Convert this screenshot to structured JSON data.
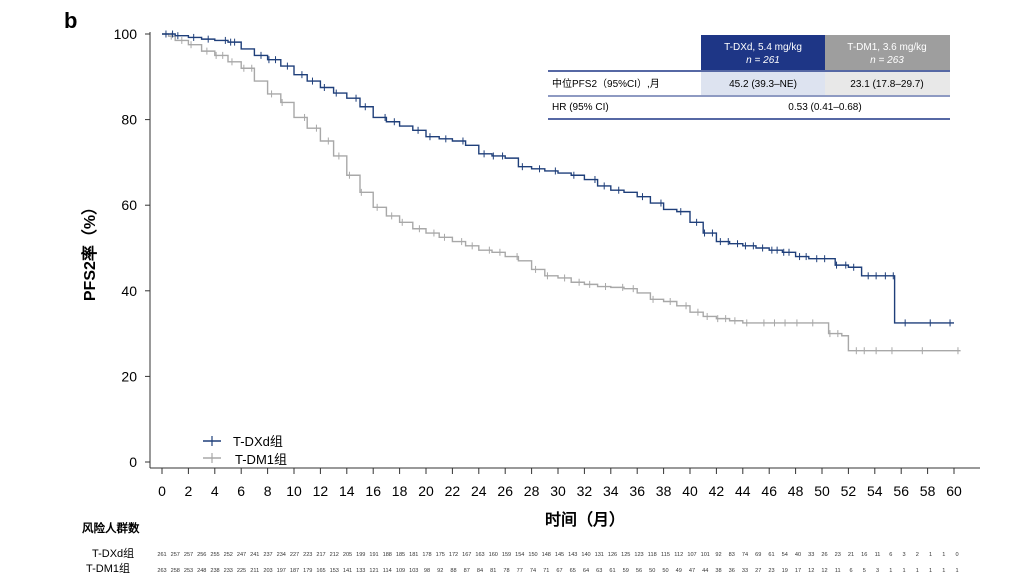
{
  "chart_data": {
    "type": "line",
    "panel_label": "b",
    "xlabel": "时间（月）",
    "ylabel": "PFS2率（%）",
    "xlim": [
      0,
      62
    ],
    "ylim": [
      0,
      100
    ],
    "xticks": [
      "0",
      "2",
      "4",
      "6",
      "8",
      "10",
      "12",
      "14",
      "16",
      "18",
      "20",
      "22",
      "24",
      "26",
      "28",
      "30",
      "32",
      "34",
      "36",
      "38",
      "40",
      "42",
      "44",
      "46",
      "48",
      "50",
      "52",
      "54",
      "56",
      "58",
      "60"
    ],
    "yticks": [
      "0",
      "20",
      "40",
      "60",
      "80",
      "100"
    ],
    "grid": false,
    "legend_position": "bottom-left",
    "colors": {
      "tdxd": "#1f3f7a",
      "tdm1": "#a8a8a8",
      "tdxd_header": "#1e3686",
      "tdm1_header": "#9e9e9e",
      "median_tdxd_bg": "#dde3f0",
      "median_tdm1_bg": "#e8e8e8"
    },
    "series": [
      {
        "name": "T-DXd组",
        "key": "tdxd",
        "points": [
          [
            0,
            100
          ],
          [
            1,
            99.6
          ],
          [
            2,
            99.2
          ],
          [
            3,
            98.8
          ],
          [
            4,
            98.5
          ],
          [
            5,
            98.1
          ],
          [
            6,
            96.5
          ],
          [
            7,
            95
          ],
          [
            8,
            94
          ],
          [
            9,
            92.5
          ],
          [
            10,
            90.5
          ],
          [
            11,
            89
          ],
          [
            12,
            87.5
          ],
          [
            13,
            86.2
          ],
          [
            14,
            85
          ],
          [
            15,
            83
          ],
          [
            16,
            80.5
          ],
          [
            17,
            79.5
          ],
          [
            18,
            78.5
          ],
          [
            19,
            77.5
          ],
          [
            20,
            76
          ],
          [
            21,
            75.5
          ],
          [
            22,
            75
          ],
          [
            23,
            74
          ],
          [
            24,
            72
          ],
          [
            25,
            71.5
          ],
          [
            26,
            71
          ],
          [
            27,
            69
          ],
          [
            28,
            68.5
          ],
          [
            29,
            68
          ],
          [
            30,
            67.5
          ],
          [
            31,
            67
          ],
          [
            32,
            66
          ],
          [
            33,
            64.5
          ],
          [
            34,
            63.5
          ],
          [
            35,
            63
          ],
          [
            36,
            62
          ],
          [
            37,
            60.5
          ],
          [
            38,
            59
          ],
          [
            39,
            58.5
          ],
          [
            40,
            56
          ],
          [
            41,
            53.5
          ],
          [
            42,
            51.5
          ],
          [
            43,
            51
          ],
          [
            44,
            50.5
          ],
          [
            45,
            50
          ],
          [
            46,
            49.5
          ],
          [
            47,
            49
          ],
          [
            48,
            48
          ],
          [
            49,
            47.5
          ],
          [
            50,
            47.5
          ],
          [
            51,
            46
          ],
          [
            52,
            45.5
          ],
          [
            53,
            43.5
          ],
          [
            55,
            43.5
          ],
          [
            55.5,
            43.5
          ],
          [
            55.5,
            32.5
          ],
          [
            60,
            32.5
          ]
        ],
        "censor_x": [
          0.3,
          0.8,
          1.2,
          2.4,
          3.5,
          4.8,
          5.2,
          5.5,
          7.5,
          8.1,
          8.6,
          9.5,
          10.6,
          11.4,
          12.3,
          13.2,
          14.7,
          15.4,
          16.9,
          17.6,
          19.4,
          20.3,
          21.5,
          22.8,
          24.4,
          25.1,
          25.8,
          27.3,
          28.6,
          29.8,
          31.2,
          32.8,
          33.5,
          34.6,
          36.4,
          37.8,
          39.3,
          40.5,
          41.1,
          41.7,
          42.3,
          42.9,
          43.6,
          44.2,
          44.8,
          45.5,
          46.2,
          46.6,
          47.1,
          47.5,
          48.3,
          48.8,
          49.6,
          50.2,
          51.1,
          51.8,
          52.4,
          53.5,
          54.1,
          54.8,
          55.4,
          56.3,
          58.2,
          59.7
        ]
      },
      {
        "name": "T-DM1组",
        "key": "tdm1",
        "points": [
          [
            0,
            100
          ],
          [
            0.5,
            99.5
          ],
          [
            1,
            98.5
          ],
          [
            2,
            97.5
          ],
          [
            3,
            96
          ],
          [
            4,
            95
          ],
          [
            5,
            93.5
          ],
          [
            6,
            92
          ],
          [
            7,
            89
          ],
          [
            8,
            86
          ],
          [
            9,
            84
          ],
          [
            10,
            80.5
          ],
          [
            11,
            78
          ],
          [
            12,
            75
          ],
          [
            13,
            71.5
          ],
          [
            14,
            67
          ],
          [
            15,
            63
          ],
          [
            16,
            59.5
          ],
          [
            17,
            57.5
          ],
          [
            18,
            56
          ],
          [
            19,
            54.5
          ],
          [
            20,
            53.5
          ],
          [
            21,
            52.5
          ],
          [
            22,
            51.5
          ],
          [
            23,
            50.5
          ],
          [
            24,
            49.5
          ],
          [
            25,
            49
          ],
          [
            26,
            48
          ],
          [
            27,
            47
          ],
          [
            28,
            45
          ],
          [
            29,
            43.5
          ],
          [
            30,
            43
          ],
          [
            31,
            42
          ],
          [
            32,
            41.5
          ],
          [
            33,
            41
          ],
          [
            34,
            40.8
          ],
          [
            35,
            40.5
          ],
          [
            36,
            39.5
          ],
          [
            37,
            38
          ],
          [
            38,
            37.5
          ],
          [
            39,
            36.5
          ],
          [
            40,
            35
          ],
          [
            41,
            34
          ],
          [
            42,
            33.5
          ],
          [
            43,
            33
          ],
          [
            44,
            32.5
          ],
          [
            50,
            32.5
          ],
          [
            50.5,
            30
          ],
          [
            51.5,
            29.5
          ],
          [
            52,
            26
          ],
          [
            60.5,
            26
          ]
        ],
        "censor_x": [
          0.7,
          1.5,
          2.2,
          3.4,
          4.1,
          4.6,
          5.3,
          6.2,
          6.8,
          8.3,
          9.1,
          10.8,
          11.7,
          12.6,
          13.4,
          14.2,
          15.1,
          16.3,
          17.4,
          18.2,
          19.5,
          20.6,
          21.4,
          22.7,
          23.5,
          24.8,
          25.6,
          26.9,
          28.3,
          29.2,
          30.5,
          31.6,
          32.4,
          33.6,
          34.9,
          35.7,
          37.2,
          38.5,
          39.7,
          40.6,
          41.3,
          42.1,
          42.7,
          43.4,
          44.3,
          45.6,
          46.4,
          47.2,
          48.1,
          49.3,
          50.6,
          51.2,
          52.6,
          53.2,
          54.1,
          55.3,
          57.6,
          60.3
        ]
      }
    ],
    "summary_table": {
      "col_headers": [
        {
          "line1": "T-DXd, 5.4 mg/kg",
          "line2": "n = 261"
        },
        {
          "line1": "T-DM1, 3.6 mg/kg",
          "line2": "n = 263"
        }
      ],
      "rows": [
        {
          "label": "中位PFS2（95%CI）,月",
          "tdxd": "45.2 (39.3–NE)",
          "tdm1": "23.1 (17.8–29.7)"
        },
        {
          "label": "HR (95% CI)",
          "combined": "0.53 (0.41–0.68)"
        }
      ]
    },
    "risk_table": {
      "title": "风险人群数",
      "rows": [
        {
          "label": "T-DXd组",
          "values": [
            "261",
            "257",
            "257",
            "256",
            "255",
            "252",
            "247",
            "241",
            "237",
            "234",
            "227",
            "223",
            "217",
            "212",
            "205",
            "199",
            "191",
            "188",
            "185",
            "181",
            "178",
            "175",
            "172",
            "167",
            "163",
            "160",
            "159",
            "154",
            "150",
            "148",
            "145",
            "143",
            "140",
            "131",
            "126",
            "125",
            "123",
            "118",
            "115",
            "112",
            "107",
            "101",
            "92",
            "83",
            "74",
            "69",
            "61",
            "54",
            "40",
            "33",
            "26",
            "23",
            "21",
            "16",
            "11",
            "6",
            "3",
            "2",
            "1",
            "1",
            "0"
          ]
        },
        {
          "label": "T-DM1组",
          "values": [
            "263",
            "258",
            "253",
            "248",
            "238",
            "233",
            "225",
            "211",
            "203",
            "197",
            "187",
            "179",
            "165",
            "153",
            "141",
            "133",
            "121",
            "114",
            "109",
            "103",
            "98",
            "92",
            "88",
            "87",
            "84",
            "81",
            "78",
            "77",
            "74",
            "71",
            "67",
            "65",
            "64",
            "63",
            "61",
            "59",
            "56",
            "50",
            "50",
            "49",
            "47",
            "44",
            "38",
            "36",
            "33",
            "27",
            "23",
            "19",
            "17",
            "12",
            "12",
            "11",
            "6",
            "5",
            "3",
            "1",
            "1",
            "1",
            "1",
            "1",
            "1"
          ]
        }
      ]
    }
  }
}
